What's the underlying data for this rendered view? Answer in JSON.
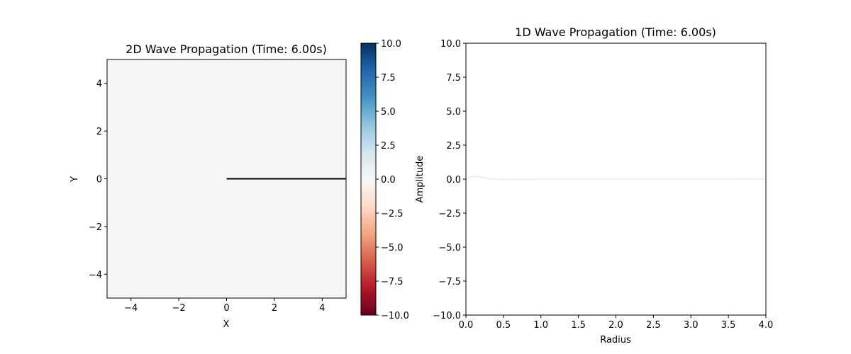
{
  "chart_data": [
    {
      "type": "heatmap",
      "title": "2D Wave Propagation (Time: 6.00s)",
      "xlabel": "X",
      "ylabel": "Y",
      "xlim": [
        -5,
        5
      ],
      "ylim": [
        -5,
        5
      ],
      "xticks": [
        -4,
        -2,
        0,
        2,
        4
      ],
      "yticks": [
        -4,
        -2,
        0,
        2,
        4
      ],
      "xtick_labels": [
        "−4",
        "−2",
        "0",
        "2",
        "4"
      ],
      "ytick_labels": [
        "−4",
        "−2",
        "0",
        "2",
        "4"
      ],
      "field_value": 0,
      "field_color": "#f5f5f5",
      "radius_line": {
        "x": [
          0,
          5
        ],
        "y": [
          0,
          0
        ],
        "color": "#000000"
      },
      "colorbar": {
        "label": "Amplitude",
        "colormap": "RdBu",
        "range": [
          -10,
          10
        ],
        "ticks": [
          -10,
          -7.5,
          -5,
          -2.5,
          0,
          2.5,
          5,
          7.5,
          10
        ],
        "tick_labels": [
          "−10.0",
          "−7.5",
          "−5.0",
          "−2.5",
          "0.0",
          "2.5",
          "5.0",
          "7.5",
          "10.0"
        ],
        "stops": [
          "#67001f",
          "#b2182b",
          "#d6604d",
          "#f4a582",
          "#fddbc7",
          "#f7f7f7",
          "#d1e5f0",
          "#92c5de",
          "#4393c3",
          "#2166ac",
          "#053061"
        ]
      },
      "grid": false
    },
    {
      "type": "line",
      "title": "1D Wave Propagation (Time: 6.00s)",
      "xlabel": "Radius",
      "ylabel": "",
      "xlim": [
        0,
        4
      ],
      "ylim": [
        -10,
        10
      ],
      "xticks": [
        0,
        0.5,
        1,
        1.5,
        2,
        2.5,
        3,
        3.5,
        4
      ],
      "yticks": [
        -10,
        -7.5,
        -5,
        -2.5,
        0,
        2.5,
        5,
        7.5,
        10
      ],
      "xtick_labels": [
        "0.0",
        "0.5",
        "1.0",
        "1.5",
        "2.0",
        "2.5",
        "3.0",
        "3.5",
        "4.0"
      ],
      "ytick_labels": [
        "−10.0",
        "−7.5",
        "−5.0",
        "−2.5",
        "0.0",
        "2.5",
        "5.0",
        "7.5",
        "10.0"
      ],
      "series": [
        {
          "x": [
            0,
            0.05,
            0.1,
            0.15,
            0.2,
            0.25,
            0.3,
            0.4,
            0.5,
            0.6,
            0.8,
            1.0,
            1.5,
            2.0,
            2.5,
            3.0,
            3.3,
            3.6,
            3.8,
            4.0
          ],
          "y": [
            0.05,
            0.15,
            0.2,
            0.2,
            0.15,
            0.08,
            0.03,
            0.0,
            -0.02,
            -0.02,
            -0.01,
            0.0,
            0.0,
            0.0,
            0.0,
            0.0,
            0.0,
            0.02,
            0.02,
            0.0
          ],
          "color": "#eaeaea"
        }
      ],
      "grid": false
    }
  ]
}
